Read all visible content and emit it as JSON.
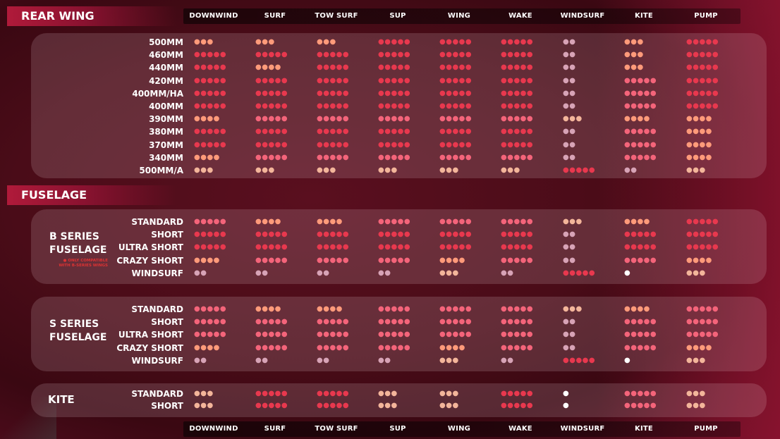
{
  "columns": [
    "DOWNWIND",
    "SURF",
    "TOW SURF",
    "SUP",
    "WING",
    "WAKE",
    "WINDSURF",
    "KITE",
    "PUMP"
  ],
  "colors": {
    "1": "#ffffff",
    "2": "#d7a3b6",
    "3": "#f3b59a",
    "4": "#ff9a7a",
    "5": "#f4647a",
    "6": "#e8384e"
  },
  "rear_wing": {
    "title": "REAR WING",
    "rows": [
      {
        "label": "500MM",
        "cells": [
          [
            3,
            4
          ],
          [
            3,
            4
          ],
          [
            3,
            4
          ],
          [
            5,
            6
          ],
          [
            5,
            6
          ],
          [
            5,
            6
          ],
          [
            2,
            2
          ],
          [
            3,
            4
          ],
          [
            5,
            6
          ]
        ]
      },
      {
        "label": "460MM",
        "cells": [
          [
            5,
            6
          ],
          [
            5,
            6
          ],
          [
            5,
            6
          ],
          [
            5,
            6
          ],
          [
            5,
            6
          ],
          [
            5,
            6
          ],
          [
            2,
            2
          ],
          [
            3,
            4
          ],
          [
            5,
            6
          ]
        ]
      },
      {
        "label": "440MM",
        "cells": [
          [
            5,
            6
          ],
          [
            4,
            4
          ],
          [
            5,
            6
          ],
          [
            5,
            6
          ],
          [
            5,
            6
          ],
          [
            5,
            6
          ],
          [
            2,
            2
          ],
          [
            3,
            4
          ],
          [
            5,
            6
          ]
        ]
      },
      {
        "label": "420MM",
        "cells": [
          [
            5,
            6
          ],
          [
            5,
            6
          ],
          [
            5,
            6
          ],
          [
            5,
            6
          ],
          [
            5,
            6
          ],
          [
            5,
            6
          ],
          [
            2,
            2
          ],
          [
            5,
            5
          ],
          [
            5,
            6
          ]
        ]
      },
      {
        "label": "400MM/HA",
        "cells": [
          [
            5,
            6
          ],
          [
            5,
            6
          ],
          [
            5,
            6
          ],
          [
            5,
            6
          ],
          [
            5,
            6
          ],
          [
            5,
            6
          ],
          [
            2,
            2
          ],
          [
            5,
            5
          ],
          [
            5,
            6
          ]
        ]
      },
      {
        "label": "400MM",
        "cells": [
          [
            5,
            6
          ],
          [
            5,
            6
          ],
          [
            5,
            6
          ],
          [
            5,
            6
          ],
          [
            5,
            6
          ],
          [
            5,
            6
          ],
          [
            2,
            2
          ],
          [
            5,
            5
          ],
          [
            5,
            6
          ]
        ]
      },
      {
        "label": "390MM",
        "cells": [
          [
            4,
            4
          ],
          [
            5,
            5
          ],
          [
            5,
            5
          ],
          [
            5,
            5
          ],
          [
            5,
            5
          ],
          [
            5,
            5
          ],
          [
            3,
            3
          ],
          [
            4,
            4
          ],
          [
            4,
            4
          ]
        ]
      },
      {
        "label": "380MM",
        "cells": [
          [
            5,
            6
          ],
          [
            5,
            6
          ],
          [
            5,
            6
          ],
          [
            5,
            6
          ],
          [
            5,
            6
          ],
          [
            5,
            6
          ],
          [
            2,
            2
          ],
          [
            5,
            5
          ],
          [
            4,
            4
          ]
        ]
      },
      {
        "label": "370MM",
        "cells": [
          [
            5,
            6
          ],
          [
            5,
            6
          ],
          [
            5,
            6
          ],
          [
            5,
            6
          ],
          [
            5,
            6
          ],
          [
            5,
            6
          ],
          [
            2,
            2
          ],
          [
            5,
            5
          ],
          [
            4,
            4
          ]
        ]
      },
      {
        "label": "340MM",
        "cells": [
          [
            4,
            4
          ],
          [
            5,
            5
          ],
          [
            5,
            5
          ],
          [
            5,
            5
          ],
          [
            5,
            5
          ],
          [
            5,
            5
          ],
          [
            2,
            2
          ],
          [
            5,
            5
          ],
          [
            4,
            4
          ]
        ]
      },
      {
        "label": "500MM/A",
        "cells": [
          [
            3,
            3
          ],
          [
            3,
            3
          ],
          [
            3,
            3
          ],
          [
            3,
            3
          ],
          [
            3,
            3
          ],
          [
            3,
            3
          ],
          [
            5,
            6
          ],
          [
            2,
            2
          ],
          [
            3,
            3
          ]
        ]
      }
    ]
  },
  "fuselage": {
    "title": "FUSELAGE",
    "b_series": {
      "name_line1": "B SERIES",
      "name_line2": "FUSELAGE",
      "note_line1": "● ONLY COMPATIBLE",
      "note_line2": "WITH B-SERIES WINGS",
      "rows": [
        {
          "label": "STANDARD",
          "cells": [
            [
              5,
              5
            ],
            [
              4,
              4
            ],
            [
              4,
              4
            ],
            [
              5,
              5
            ],
            [
              5,
              5
            ],
            [
              5,
              5
            ],
            [
              3,
              3
            ],
            [
              4,
              4
            ],
            [
              5,
              6
            ]
          ]
        },
        {
          "label": "SHORT",
          "cells": [
            [
              5,
              6
            ],
            [
              5,
              6
            ],
            [
              5,
              6
            ],
            [
              5,
              6
            ],
            [
              5,
              6
            ],
            [
              5,
              6
            ],
            [
              2,
              2
            ],
            [
              5,
              6
            ],
            [
              5,
              6
            ]
          ]
        },
        {
          "label": "ULTRA SHORT",
          "cells": [
            [
              5,
              6
            ],
            [
              5,
              6
            ],
            [
              5,
              6
            ],
            [
              5,
              6
            ],
            [
              5,
              6
            ],
            [
              5,
              6
            ],
            [
              2,
              2
            ],
            [
              5,
              6
            ],
            [
              5,
              6
            ]
          ]
        },
        {
          "label": "CRAZY SHORT",
          "cells": [
            [
              4,
              4
            ],
            [
              5,
              5
            ],
            [
              5,
              5
            ],
            [
              5,
              5
            ],
            [
              4,
              4
            ],
            [
              5,
              5
            ],
            [
              2,
              2
            ],
            [
              5,
              5
            ],
            [
              4,
              4
            ]
          ]
        },
        {
          "label": "WINDSURF",
          "cells": [
            [
              2,
              2
            ],
            [
              2,
              2
            ],
            [
              2,
              2
            ],
            [
              2,
              2
            ],
            [
              3,
              3
            ],
            [
              2,
              2
            ],
            [
              5,
              6
            ],
            [
              1,
              1
            ],
            [
              3,
              3
            ]
          ]
        }
      ]
    },
    "s_series": {
      "name_line1": "S SERIES",
      "name_line2": "FUSELAGE",
      "rows": [
        {
          "label": "STANDARD",
          "cells": [
            [
              5,
              5
            ],
            [
              4,
              4
            ],
            [
              4,
              4
            ],
            [
              5,
              5
            ],
            [
              5,
              5
            ],
            [
              5,
              5
            ],
            [
              3,
              3
            ],
            [
              4,
              4
            ],
            [
              5,
              5
            ]
          ]
        },
        {
          "label": "SHORT",
          "cells": [
            [
              5,
              5
            ],
            [
              5,
              5
            ],
            [
              5,
              5
            ],
            [
              5,
              5
            ],
            [
              5,
              5
            ],
            [
              5,
              5
            ],
            [
              2,
              2
            ],
            [
              5,
              5
            ],
            [
              5,
              5
            ]
          ]
        },
        {
          "label": "ULTRA SHORT",
          "cells": [
            [
              5,
              5
            ],
            [
              5,
              5
            ],
            [
              5,
              5
            ],
            [
              5,
              5
            ],
            [
              5,
              5
            ],
            [
              5,
              5
            ],
            [
              2,
              2
            ],
            [
              5,
              5
            ],
            [
              5,
              5
            ]
          ]
        },
        {
          "label": "CRAZY SHORT",
          "cells": [
            [
              4,
              4
            ],
            [
              5,
              5
            ],
            [
              5,
              5
            ],
            [
              5,
              5
            ],
            [
              4,
              4
            ],
            [
              5,
              5
            ],
            [
              2,
              2
            ],
            [
              5,
              5
            ],
            [
              4,
              4
            ]
          ]
        },
        {
          "label": "WINDSURF",
          "cells": [
            [
              2,
              2
            ],
            [
              2,
              2
            ],
            [
              2,
              2
            ],
            [
              2,
              2
            ],
            [
              3,
              3
            ],
            [
              2,
              2
            ],
            [
              5,
              6
            ],
            [
              1,
              1
            ],
            [
              3,
              3
            ]
          ]
        }
      ]
    },
    "kite": {
      "name": "KITE",
      "rows": [
        {
          "label": "STANDARD",
          "cells": [
            [
              3,
              3
            ],
            [
              5,
              6
            ],
            [
              5,
              6
            ],
            [
              3,
              3
            ],
            [
              3,
              3
            ],
            [
              5,
              6
            ],
            [
              1,
              1
            ],
            [
              5,
              5
            ],
            [
              3,
              3
            ]
          ]
        },
        {
          "label": "SHORT",
          "cells": [
            [
              3,
              3
            ],
            [
              5,
              6
            ],
            [
              5,
              6
            ],
            [
              3,
              3
            ],
            [
              3,
              3
            ],
            [
              5,
              6
            ],
            [
              1,
              1
            ],
            [
              5,
              5
            ],
            [
              3,
              3
            ]
          ]
        }
      ]
    }
  }
}
